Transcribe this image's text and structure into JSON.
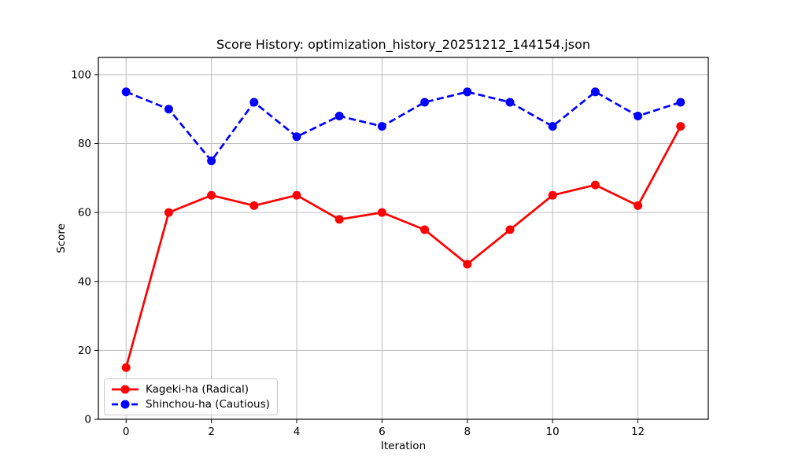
{
  "chart_data": {
    "type": "line",
    "title": "Score History: optimization_history_20251212_144154.json",
    "xlabel": "Iteration",
    "ylabel": "Score",
    "x": [
      0,
      1,
      2,
      3,
      4,
      5,
      6,
      7,
      8,
      9,
      10,
      11,
      12,
      13
    ],
    "series": [
      {
        "name": "Kageki-ha (Radical)",
        "color": "#ff0000",
        "line_style": "solid",
        "marker": "circle",
        "values": [
          15,
          60,
          65,
          62,
          65,
          58,
          60,
          55,
          45,
          55,
          65,
          68,
          62,
          85
        ]
      },
      {
        "name": "Shinchou-ha (Cautious)",
        "color": "#0000ff",
        "line_style": "dashed",
        "marker": "circle",
        "values": [
          95,
          90,
          75,
          92,
          82,
          88,
          85,
          92,
          95,
          92,
          85,
          95,
          88,
          92
        ]
      }
    ],
    "xlim": [
      -0.65,
      13.65
    ],
    "ylim": [
      0,
      105
    ],
    "xticks": [
      0,
      2,
      4,
      6,
      8,
      10,
      12
    ],
    "yticks": [
      0,
      20,
      40,
      60,
      80,
      100
    ],
    "grid": true,
    "grid_color": "#bcbcbc",
    "spine_color": "#000000",
    "background_color": "#ffffff",
    "legend_position": "lower left"
  }
}
